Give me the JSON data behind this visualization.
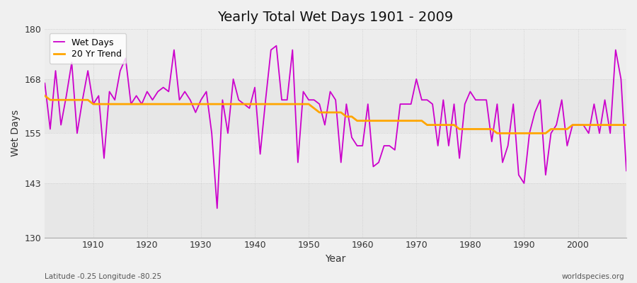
{
  "title": "Yearly Total Wet Days 1901 - 2009",
  "xlabel": "Year",
  "ylabel": "Wet Days",
  "subtitle_left": "Latitude -0.25 Longitude -80.25",
  "subtitle_right": "worldspecies.org",
  "ylim": [
    130,
    180
  ],
  "yticks": [
    130,
    143,
    155,
    168,
    180
  ],
  "xlim": [
    1901,
    2009
  ],
  "bg_outer": "#f0f0f0",
  "bg_inner": "#f0f0f0",
  "wet_days_color": "#cc00cc",
  "trend_color": "#ffa500",
  "wet_days_linewidth": 1.3,
  "trend_linewidth": 2.0,
  "legend_wet": "Wet Days",
  "legend_trend": "20 Yr Trend",
  "years": [
    1901,
    1902,
    1903,
    1904,
    1905,
    1906,
    1907,
    1908,
    1909,
    1910,
    1911,
    1912,
    1913,
    1914,
    1915,
    1916,
    1917,
    1918,
    1919,
    1920,
    1921,
    1922,
    1923,
    1924,
    1925,
    1926,
    1927,
    1928,
    1929,
    1930,
    1931,
    1932,
    1933,
    1934,
    1935,
    1936,
    1937,
    1938,
    1939,
    1940,
    1941,
    1942,
    1943,
    1944,
    1945,
    1946,
    1947,
    1948,
    1949,
    1950,
    1951,
    1952,
    1953,
    1954,
    1955,
    1956,
    1957,
    1958,
    1959,
    1960,
    1961,
    1962,
    1963,
    1964,
    1965,
    1966,
    1967,
    1968,
    1969,
    1970,
    1971,
    1972,
    1973,
    1974,
    1975,
    1976,
    1977,
    1978,
    1979,
    1980,
    1981,
    1982,
    1983,
    1984,
    1985,
    1986,
    1987,
    1988,
    1989,
    1990,
    1991,
    1992,
    1993,
    1994,
    1995,
    1996,
    1997,
    1998,
    1999,
    2000,
    2001,
    2002,
    2003,
    2004,
    2005,
    2006,
    2007,
    2008,
    2009
  ],
  "wet_days": [
    167,
    156,
    170,
    157,
    164,
    172,
    155,
    163,
    170,
    162,
    164,
    149,
    165,
    163,
    170,
    173,
    162,
    164,
    162,
    165,
    163,
    165,
    166,
    165,
    175,
    163,
    165,
    163,
    160,
    163,
    165,
    155,
    137,
    163,
    155,
    168,
    163,
    162,
    161,
    166,
    150,
    163,
    175,
    176,
    163,
    163,
    175,
    148,
    165,
    163,
    163,
    162,
    157,
    165,
    163,
    148,
    162,
    154,
    152,
    152,
    162,
    147,
    148,
    152,
    152,
    151,
    162,
    162,
    162,
    168,
    163,
    163,
    162,
    152,
    163,
    152,
    162,
    149,
    162,
    165,
    163,
    163,
    163,
    153,
    162,
    148,
    152,
    162,
    145,
    143,
    155,
    160,
    163,
    145,
    155,
    157,
    163,
    152,
    157,
    157,
    157,
    155,
    162,
    155,
    163,
    155,
    175,
    168,
    146
  ],
  "trend": [
    164,
    163,
    163,
    163,
    163,
    163,
    163,
    163,
    163,
    162,
    162,
    162,
    162,
    162,
    162,
    162,
    162,
    162,
    162,
    162,
    162,
    162,
    162,
    162,
    162,
    162,
    162,
    162,
    162,
    162,
    162,
    162,
    162,
    162,
    162,
    162,
    162,
    162,
    162,
    162,
    162,
    162,
    162,
    162,
    162,
    162,
    162,
    162,
    162,
    162,
    161,
    160,
    160,
    160,
    160,
    160,
    159,
    159,
    158,
    158,
    158,
    158,
    158,
    158,
    158,
    158,
    158,
    158,
    158,
    158,
    158,
    157,
    157,
    157,
    157,
    157,
    157,
    156,
    156,
    156,
    156,
    156,
    156,
    156,
    155,
    155,
    155,
    155,
    155,
    155,
    155,
    155,
    155,
    155,
    156,
    156,
    156,
    156,
    157,
    157,
    157,
    157,
    157,
    157,
    157,
    157,
    157,
    157,
    157
  ]
}
